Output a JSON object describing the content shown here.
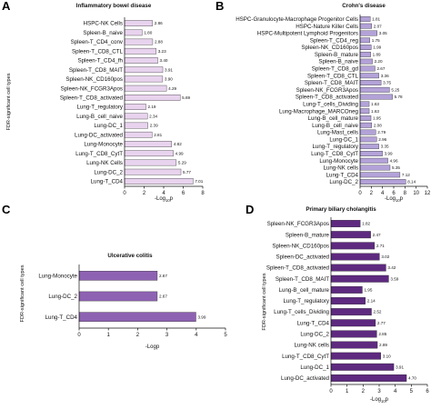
{
  "chart_data": [
    {
      "panel": "A",
      "type": "bar",
      "orientation": "horizontal",
      "title": "Inflammatory bowel disease",
      "ylabel": "FDR-significant cell types",
      "xlabel": "-Log10p",
      "xlim": [
        0,
        8
      ],
      "xticks": [
        0,
        2,
        4,
        6,
        8
      ],
      "color": "#e8d3ee",
      "categories": [
        "HSPC-NK Cells",
        "Spleen-B_naive",
        "Spleen-T_CD4_conv",
        "Spleen-T_CD8_CTL",
        "Spleen-T_CD4_fh",
        "Spleen-T_CD8_MAIT",
        "Spleen-NK_CD160pos",
        "Spleen-NK_FCGR3Apos",
        "Spleen-T_CD8_activated",
        "Lung-T_regulatory",
        "Lung-B_cell_naive",
        "Lung-DC_1",
        "Lung-DC_activated",
        "Lung-Monocyte",
        "Lung-T_CD8_CytT",
        "Lung-NK Cells",
        "Lung-DC_2",
        "Lung-T_CD4"
      ],
      "values": [
        2.86,
        1.8,
        2.88,
        3.23,
        3.4,
        3.91,
        3.9,
        4.29,
        5.69,
        2.19,
        2.34,
        2.39,
        2.81,
        4.82,
        4.99,
        5.29,
        5.77,
        7.01
      ],
      "value_labels": [
        "2.86",
        "1.80",
        "2.88",
        "3.23",
        "3.40",
        "3.91",
        "3.90",
        "4.29",
        "5.69",
        "2.19",
        "2.34",
        "2.39",
        "2.81",
        "4.82",
        "4.99",
        "5.29",
        "5.77",
        "7.01"
      ]
    },
    {
      "panel": "B",
      "type": "bar",
      "orientation": "horizontal",
      "title": "Crohn's disease",
      "ylabel": "",
      "xlabel": "-Log10p",
      "xlim": [
        0,
        12
      ],
      "xticks": [
        0,
        2,
        4,
        6,
        8,
        10,
        12
      ],
      "color": "#b3a2d8",
      "categories": [
        "HSPC-Granulocyte-Macrophage Progenitor Cells",
        "HSPC-Nature Killer Cells",
        "HSPC-Multipotent Lymphoid Progenitors",
        "Spleen-T_CD4_reg",
        "Spleen-NK_CD160pos",
        "Spleen-B_mature",
        "Spleen-B_naive",
        "Spleen-T_CD8_gd",
        "Spleen-T_CD8_CTL",
        "Spleen-T_CD8_MAIT",
        "Spleen-NK_FCGR3Apos",
        "Spleen-T_CD8_activated",
        "Lung-T_cells_Dividing",
        "Lung-Macrophage_MARCOneg",
        "Lung-B_cell_mature",
        "Lung-B_cell_naive",
        "Lung-Mast_cells",
        "Lung-DC_1",
        "Lung-T_regulatory",
        "Lung-T_CD8_CytT",
        "Lung-Monocyte",
        "Lung-NK cells",
        "Lung-T_CD4",
        "Lung-DC_2"
      ],
      "values": [
        1.81,
        2.07,
        3.05,
        1.75,
        1.99,
        1.89,
        2.2,
        2.67,
        3.36,
        3.75,
        5.25,
        5.78,
        1.63,
        1.63,
        1.95,
        2.08,
        2.79,
        2.96,
        3.35,
        3.99,
        4.96,
        5.35,
        7.12,
        8.14
      ],
      "value_labels": [
        "1.81",
        "2.07",
        "3.05",
        "1.75",
        "1.99",
        "1.89",
        "2.20",
        "2.67",
        "3.36",
        "3.75",
        "5.25",
        "5.78",
        "1.63",
        "1.63",
        "1.95",
        "2.08",
        "2.79",
        "2.96",
        "3.35",
        "3.99",
        "4.96",
        "5.35",
        "7.12",
        "8.14"
      ]
    },
    {
      "panel": "C",
      "type": "bar",
      "orientation": "horizontal",
      "title": "Ulcerative colitis",
      "ylabel": "FDR-significant cell types",
      "xlabel": "-Logp",
      "xlim": [
        0,
        5
      ],
      "xticks": [
        0,
        1,
        2,
        3,
        4,
        5
      ],
      "color": "#8e62b3",
      "categories": [
        "Lung-Monocyte",
        "Lung-DC_2",
        "Lung-T_CD4"
      ],
      "values": [
        2.67,
        2.67,
        3.99
      ],
      "value_labels": [
        "2.67",
        "2.67",
        "3.99"
      ]
    },
    {
      "panel": "D",
      "type": "bar",
      "orientation": "horizontal",
      "title": "Primary biliary cholangitis",
      "ylabel": "FDR-significant cell types",
      "xlabel": "-Log10p",
      "xlim": [
        0,
        6
      ],
      "xticks": [
        0,
        1,
        2,
        3,
        4,
        5,
        6
      ],
      "color": "#5e2a80",
      "categories": [
        "Spleen-NK_FCGR3Apos",
        "Spleen-B_mature",
        "Spleen-NK_CD160pos",
        "Spleen-DC_activated",
        "Spleen-T_CD8_activated",
        "Spleen-T_CD8_MAIT",
        "Lung-B_cell_mature",
        "Lung-T_regulatory",
        "Lung-T_cells_Dividing",
        "Lung-T_CD4",
        "Lung-DC_2",
        "Lung-NK cells",
        "Lung-T_CD8_CytT",
        "Lung-DC_1",
        "Lung-DC_activated"
      ],
      "values": [
        1.82,
        2.47,
        2.71,
        3.02,
        3.42,
        3.59,
        1.95,
        2.14,
        2.52,
        2.77,
        2.85,
        2.89,
        3.1,
        3.91,
        4.7
      ],
      "value_labels": [
        "1.82",
        "2.47",
        "2.71",
        "3.02",
        "3.42",
        "3.59",
        "1.95",
        "2.14",
        "2.52",
        "2.77",
        "2.85",
        "2.89",
        "3.10",
        "3.91",
        "4.70"
      ]
    }
  ]
}
